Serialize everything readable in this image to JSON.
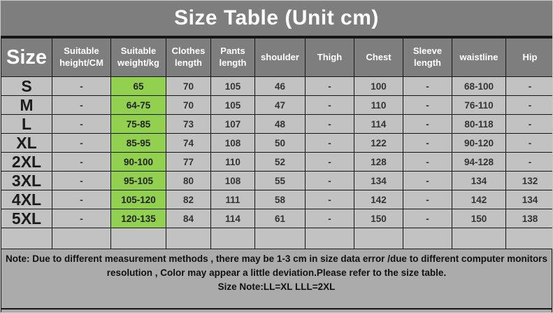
{
  "title": "Size Table (Unit cm)",
  "chart_data": {
    "type": "table",
    "title": "Size Table (Unit cm)",
    "columns": [
      "Size",
      "Suitable height/CM",
      "Suitable weight/kg",
      "Clothes length",
      "Pants length",
      "shoulder",
      "Thigh",
      "Chest",
      "Sleeve length",
      "waistline",
      "Hip"
    ],
    "rows": [
      [
        "S",
        "-",
        "65",
        "70",
        "105",
        "46",
        "-",
        "100",
        "-",
        "68-100",
        "-"
      ],
      [
        "M",
        "-",
        "64-75",
        "70",
        "105",
        "47",
        "-",
        "110",
        "-",
        "76-110",
        "-"
      ],
      [
        "L",
        "-",
        "75-85",
        "73",
        "107",
        "48",
        "-",
        "114",
        "-",
        "80-118",
        "-"
      ],
      [
        "XL",
        "-",
        "85-95",
        "74",
        "108",
        "50",
        "-",
        "122",
        "-",
        "90-120",
        "-"
      ],
      [
        "2XL",
        "-",
        "90-100",
        "77",
        "110",
        "52",
        "-",
        "128",
        "-",
        "94-128",
        "-"
      ],
      [
        "3XL",
        "-",
        "95-105",
        "80",
        "108",
        "55",
        "-",
        "134",
        "-",
        "134",
        "132"
      ],
      [
        "4XL",
        "-",
        "105-120",
        "82",
        "111",
        "58",
        "-",
        "142",
        "-",
        "142",
        "134"
      ],
      [
        "5XL",
        "-",
        "120-135",
        "84",
        "114",
        "61",
        "-",
        "150",
        "-",
        "150",
        "138"
      ]
    ],
    "highlight_column": "Suitable weight/kg",
    "highlight_column_index": 2,
    "highlight_color": "#92d050",
    "empty_trailing_row": true,
    "layout_hint": "grid on, merged title row on top, note footer spanning all columns"
  },
  "note": {
    "line1": "Note: Due to different measurement methods , there may be 1-3 cm in size data error /due to different computer monitors",
    "line2": "resolution , Color may appear a little deviation.Please refer to the size table.",
    "line3": "Size Note:LL=XL LLL=2XL"
  },
  "colors": {
    "header_bg": "#7e7e7e",
    "cell_bg": "#c2c2c2",
    "highlight": "#92d050",
    "note_bg": "#ababab",
    "border": "#161616",
    "title_text": "#ffffff",
    "cell_text": "#333333",
    "note_text": "#101010"
  }
}
